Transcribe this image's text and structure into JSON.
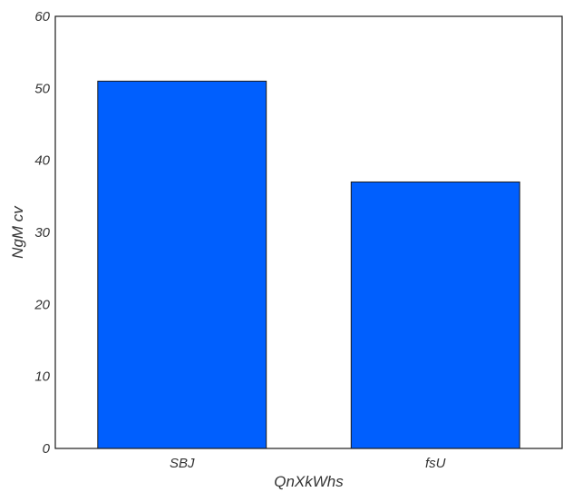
{
  "chart_data": {
    "type": "bar",
    "title": "",
    "xlabel": "QnXkWhs",
    "ylabel": "NgM cv",
    "categories": [
      "SBJ",
      "fsU"
    ],
    "values": [
      51,
      37
    ],
    "ylim": [
      0,
      60
    ],
    "yticks": [
      0,
      10,
      20,
      30,
      40,
      50,
      60
    ],
    "grid": false,
    "legend": "none",
    "bar_color": "#005ffe",
    "bar_edge_color": "#1a1a1a"
  }
}
